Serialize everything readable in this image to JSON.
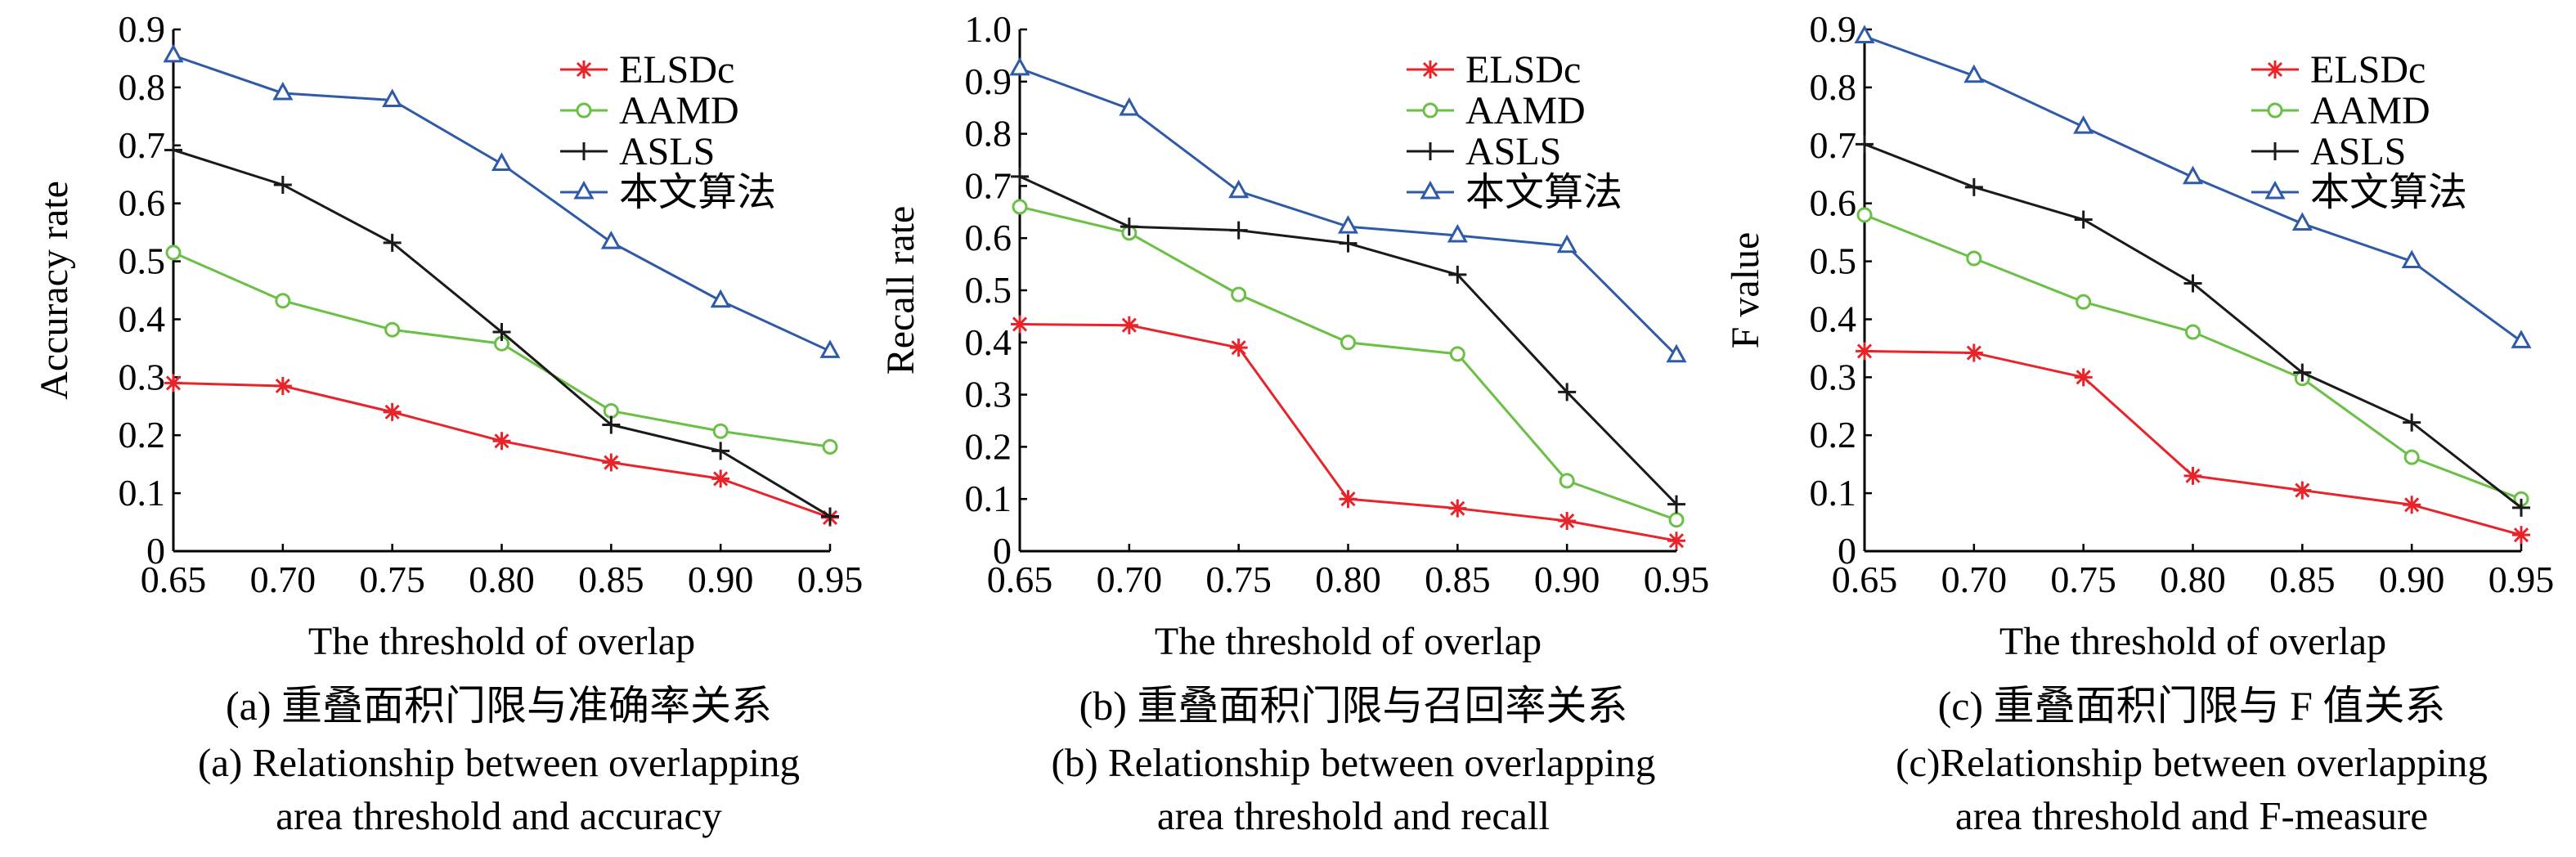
{
  "colors": {
    "ELSDc": "#e8242a",
    "AAMD": "#6abf45",
    "ASLS": "#1a1a1a",
    "ours": "#2f5aa8"
  },
  "captions": [
    {
      "zh": "(a) 重叠面积门限与准确率关系",
      "en1": "(a) Relationship between overlapping",
      "en2": "area threshold and accuracy"
    },
    {
      "zh": "(b) 重叠面积门限与召回率关系",
      "en1": "(b) Relationship between overlapping",
      "en2": "area threshold and recall"
    },
    {
      "zh": "(c) 重叠面积门限与 F 值关系",
      "en1": "(c)Relationship between overlapping",
      "en2": "area threshold and F-measure"
    }
  ],
  "chart_data": [
    {
      "type": "line",
      "x": [
        "0.65",
        "0.70",
        "0.75",
        "0.80",
        "0.85",
        "0.90",
        "0.95"
      ],
      "xlabel": "The threshold of overlap",
      "ylabel": "Accuracy rate",
      "ylim": [
        0,
        0.9
      ],
      "yticks": [
        "0",
        "0.1",
        "0.2",
        "0.3",
        "0.4",
        "0.5",
        "0.6",
        "0.7",
        "0.8",
        "0.9"
      ],
      "legend_position": "top-right",
      "series": [
        {
          "name": "ELSDc",
          "marker": "asterisk",
          "values": [
            0.29,
            0.285,
            0.24,
            0.19,
            0.153,
            0.125,
            0.058
          ]
        },
        {
          "name": "AAMD",
          "marker": "circle",
          "values": [
            0.515,
            0.432,
            0.382,
            0.358,
            0.242,
            0.207,
            0.18
          ]
        },
        {
          "name": "ASLS",
          "marker": "plus",
          "values": [
            0.692,
            0.632,
            0.532,
            0.378,
            0.218,
            0.173,
            0.06
          ]
        },
        {
          "name": "本文算法",
          "marker": "triangle",
          "values": [
            0.855,
            0.79,
            0.778,
            0.668,
            0.533,
            0.432,
            0.345
          ]
        }
      ]
    },
    {
      "type": "line",
      "x": [
        "0.65",
        "0.70",
        "0.75",
        "0.80",
        "0.85",
        "0.90",
        "0.95"
      ],
      "xlabel": "The threshold of overlap",
      "ylabel": "Recall rate",
      "ylim": [
        0,
        1.0
      ],
      "yticks": [
        "0",
        "0.1",
        "0.2",
        "0.3",
        "0.4",
        "0.5",
        "0.6",
        "0.7",
        "0.8",
        "0.9",
        "1.0"
      ],
      "legend_position": "top-right",
      "series": [
        {
          "name": "ELSDc",
          "marker": "asterisk",
          "values": [
            0.435,
            0.433,
            0.39,
            0.1,
            0.082,
            0.058,
            0.02
          ]
        },
        {
          "name": "AAMD",
          "marker": "circle",
          "values": [
            0.66,
            0.61,
            0.492,
            0.4,
            0.378,
            0.135,
            0.06
          ]
        },
        {
          "name": "ASLS",
          "marker": "plus",
          "values": [
            0.718,
            0.622,
            0.615,
            0.59,
            0.53,
            0.305,
            0.09
          ]
        },
        {
          "name": "本文算法",
          "marker": "triangle",
          "values": [
            0.925,
            0.848,
            0.69,
            0.622,
            0.605,
            0.585,
            0.375
          ]
        }
      ]
    },
    {
      "type": "line",
      "x": [
        "0.65",
        "0.70",
        "0.75",
        "0.80",
        "0.85",
        "0.90",
        "0.95"
      ],
      "xlabel": "The threshold of overlap",
      "ylabel": "F value",
      "ylim": [
        0,
        0.9
      ],
      "yticks": [
        "0",
        "0.1",
        "0.2",
        "0.3",
        "0.4",
        "0.5",
        "0.6",
        "0.7",
        "0.8",
        "0.9"
      ],
      "legend_position": "top-right",
      "series": [
        {
          "name": "ELSDc",
          "marker": "asterisk",
          "values": [
            0.345,
            0.342,
            0.3,
            0.13,
            0.105,
            0.08,
            0.028
          ]
        },
        {
          "name": "AAMD",
          "marker": "circle",
          "values": [
            0.58,
            0.505,
            0.43,
            0.378,
            0.298,
            0.162,
            0.09
          ]
        },
        {
          "name": "ASLS",
          "marker": "plus",
          "values": [
            0.702,
            0.628,
            0.572,
            0.462,
            0.308,
            0.222,
            0.075
          ]
        },
        {
          "name": "本文算法",
          "marker": "triangle",
          "values": [
            0.888,
            0.82,
            0.732,
            0.645,
            0.565,
            0.5,
            0.362
          ]
        }
      ]
    }
  ]
}
